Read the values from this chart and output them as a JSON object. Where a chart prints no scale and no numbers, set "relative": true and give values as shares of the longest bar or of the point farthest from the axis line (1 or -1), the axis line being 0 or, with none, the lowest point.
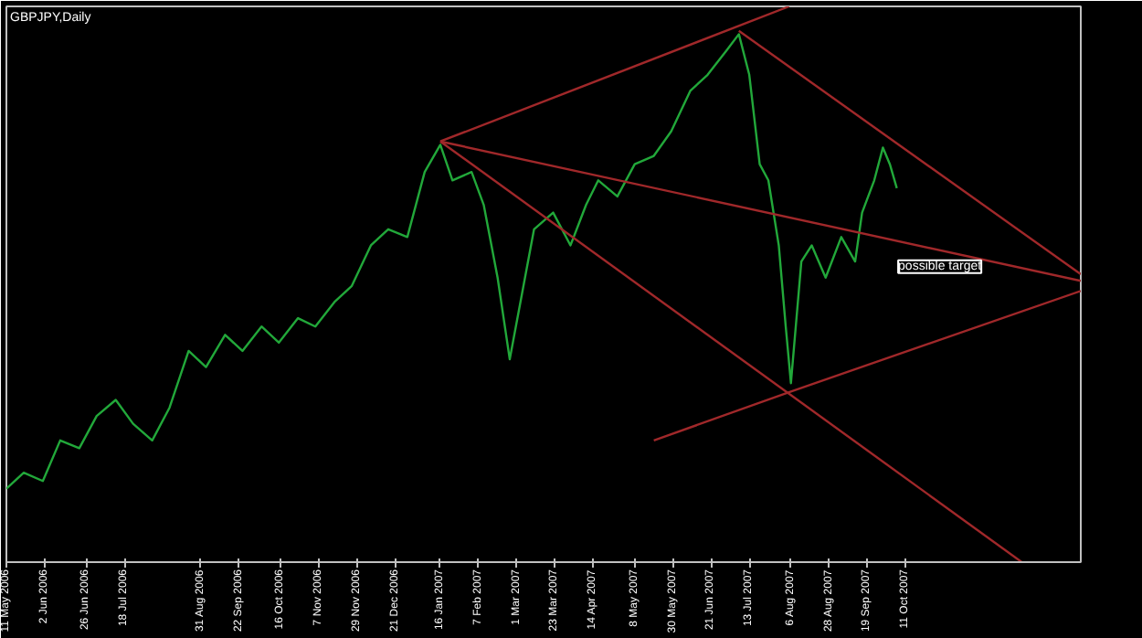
{
  "chart_data": {
    "type": "line",
    "title": "GBPJPY,Daily",
    "relative": true,
    "grid": false,
    "marker": "none",
    "line_style": "solid",
    "xlim": [
      "2006-05-11",
      "2008-01-20"
    ],
    "xticks": [
      {
        "value": "2006-05-11",
        "label": "11 May 2006"
      },
      {
        "value": "2006-06-02",
        "label": "2 Jun 2006"
      },
      {
        "value": "2006-06-26",
        "label": "26 Jun 2006"
      },
      {
        "value": "2006-07-18",
        "label": "18 Jul 2006"
      },
      {
        "value": "2006-08-31",
        "label": "31 Aug 2006"
      },
      {
        "value": "2006-09-22",
        "label": "22 Sep 2006"
      },
      {
        "value": "2006-10-16",
        "label": "16 Oct 2006"
      },
      {
        "value": "2006-11-07",
        "label": "7 Nov 2006"
      },
      {
        "value": "2006-11-29",
        "label": "29 Nov 2006"
      },
      {
        "value": "2006-12-21",
        "label": "21 Dec 2006"
      },
      {
        "value": "2007-01-16",
        "label": "16 Jan 2007"
      },
      {
        "value": "2007-02-07",
        "label": "7 Feb 2007"
      },
      {
        "value": "2007-03-01",
        "label": "1 Mar 2007"
      },
      {
        "value": "2007-03-23",
        "label": "23 Mar 2007"
      },
      {
        "value": "2007-04-14",
        "label": "14 Apr 2007"
      },
      {
        "value": "2007-05-08",
        "label": "8 May 2007"
      },
      {
        "value": "2007-05-30",
        "label": "30 May 2007"
      },
      {
        "value": "2007-06-21",
        "label": "21 Jun 2007"
      },
      {
        "value": "2007-07-13",
        "label": "13 Jul 2007"
      },
      {
        "value": "2007-08-06",
        "label": "6 Aug 2007"
      },
      {
        "value": "2007-08-28",
        "label": "28 Aug 2007"
      },
      {
        "value": "2007-09-19",
        "label": "19 Sep 2007"
      },
      {
        "value": "2007-10-11",
        "label": "11 Oct 2007"
      }
    ],
    "annotations": [
      "possible target"
    ],
    "series": [
      {
        "color": "#22a83a",
        "x": [
          "2006-05-11",
          "2006-05-21",
          "2006-06-01",
          "2006-06-11",
          "2006-06-22",
          "2006-07-02",
          "2006-07-13",
          "2006-07-23",
          "2006-08-03",
          "2006-08-13",
          "2006-08-24",
          "2006-09-03",
          "2006-09-14",
          "2006-09-24",
          "2006-10-05",
          "2006-10-15",
          "2006-10-26",
          "2006-11-05",
          "2006-11-16",
          "2006-11-26",
          "2006-12-07",
          "2006-12-17",
          "2006-12-28",
          "2007-01-07",
          "2007-01-16",
          "2007-01-23",
          "2007-02-03",
          "2007-02-10",
          "2007-02-18",
          "2007-02-25",
          "2007-03-04",
          "2007-03-11",
          "2007-03-22",
          "2007-04-01",
          "2007-04-10",
          "2007-04-17",
          "2007-04-28",
          "2007-05-08",
          "2007-05-19",
          "2007-05-29",
          "2007-06-09",
          "2007-06-19",
          "2007-06-30",
          "2007-07-07",
          "2007-07-13",
          "2007-07-19",
          "2007-07-24",
          "2007-07-30",
          "2007-08-03",
          "2007-08-06",
          "2007-08-12",
          "2007-08-18",
          "2007-08-26",
          "2007-09-04",
          "2007-09-12",
          "2007-09-16",
          "2007-09-23",
          "2007-09-28",
          "2007-10-02",
          "2007-10-06"
        ],
        "values": [
          0.132,
          0.161,
          0.146,
          0.219,
          0.205,
          0.263,
          0.292,
          0.249,
          0.219,
          0.278,
          0.38,
          0.351,
          0.409,
          0.38,
          0.424,
          0.395,
          0.439,
          0.424,
          0.468,
          0.497,
          0.57,
          0.599,
          0.585,
          0.702,
          0.751,
          0.687,
          0.702,
          0.643,
          0.512,
          0.365,
          0.482,
          0.599,
          0.629,
          0.57,
          0.643,
          0.687,
          0.658,
          0.716,
          0.731,
          0.775,
          0.848,
          0.877,
          0.921,
          0.95,
          0.877,
          0.716,
          0.687,
          0.57,
          0.424,
          0.322,
          0.541,
          0.57,
          0.512,
          0.585,
          0.541,
          0.629,
          0.687,
          0.746,
          0.716,
          0.673
        ]
      },
      {
        "color": "#a0282a",
        "x": [
          "2007-01-16",
          "2007-08-05"
        ],
        "values": [
          0.757,
          1.0
        ]
      },
      {
        "color": "#a0282a",
        "x": [
          "2007-07-07",
          "2008-01-20"
        ],
        "values": [
          0.956,
          0.518
        ]
      },
      {
        "color": "#a0282a",
        "x": [
          "2007-01-16",
          "2008-01-20"
        ],
        "values": [
          0.757,
          0.506
        ]
      },
      {
        "color": "#a0282a",
        "x": [
          "2007-01-16",
          "2007-12-17"
        ],
        "values": [
          0.757,
          0.0
        ]
      },
      {
        "color": "#a0282a",
        "x": [
          "2007-05-19",
          "2007-08-06",
          "2008-01-20"
        ],
        "values": [
          0.219,
          0.307,
          0.488
        ]
      }
    ]
  }
}
